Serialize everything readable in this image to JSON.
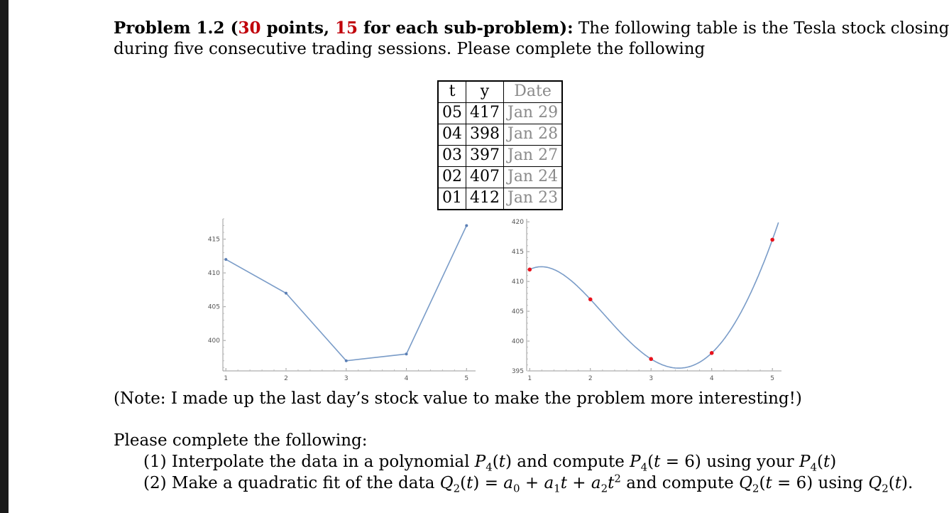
{
  "heading": {
    "problem": "Problem 1.2 (",
    "points": "30",
    "points_text": " points, ",
    "each": "15",
    "each_text": " for each sub-problem):",
    "line1_rest": " The following table is the Tesla stock closings",
    "line2": "during five consecutive trading sessions. Please complete the following"
  },
  "table": {
    "headers": [
      "t",
      "y",
      "Date"
    ],
    "rows": [
      [
        "05",
        "417",
        "Jan 29"
      ],
      [
        "04",
        "398",
        "Jan 28"
      ],
      [
        "03",
        "397",
        "Jan 27"
      ],
      [
        "02",
        "407",
        "Jan 24"
      ],
      [
        "01",
        "412",
        "Jan 23"
      ]
    ]
  },
  "note": "(Note: I made up the last day’s stock value to make the problem more interesting!)",
  "instructions": {
    "intro": "Please complete the following:",
    "item1_a": "(1) Interpolate the data in a polynomial ",
    "item1_b": " and compute ",
    "item1_c": " using  your ",
    "item2_a": "(2) Make a quadratic fit of the data ",
    "item2_b": " and compute ",
    "item2_c": " using "
  },
  "chart_data": [
    {
      "type": "line",
      "x": [
        1,
        2,
        3,
        4,
        5
      ],
      "y": [
        412,
        407,
        397,
        398,
        417
      ],
      "xticks": [
        "1",
        "2",
        "3",
        "4",
        "5"
      ],
      "yticks": [
        "400",
        "405",
        "410",
        "415"
      ],
      "xlim": [
        0.95,
        5.15
      ],
      "ylim": [
        395.5,
        418
      ],
      "color": "#7a9cc8"
    },
    {
      "type": "line",
      "points_x": [
        1,
        2,
        3,
        4,
        5
      ],
      "points_y": [
        412,
        407,
        397,
        398,
        417
      ],
      "curve": "quartic interpolating polynomial",
      "xticks": [
        "1",
        "2",
        "3",
        "4",
        "5"
      ],
      "yticks": [
        "395",
        "400",
        "405",
        "410",
        "415",
        "420"
      ],
      "xlim": [
        0.95,
        5.15
      ],
      "ylim": [
        395,
        420.5
      ],
      "curve_color": "#7a9cc8",
      "point_color": "#e8121c"
    }
  ]
}
